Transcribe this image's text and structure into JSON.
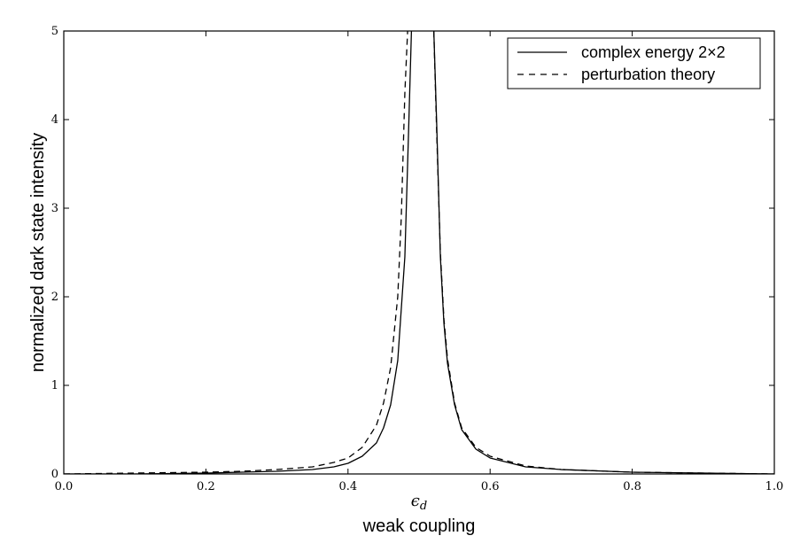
{
  "chart_data": {
    "type": "line",
    "title": "",
    "xlabel_symbol": "ϵ",
    "xlabel_subscript": "d",
    "xlabel_caption": "weak coupling",
    "ylabel": "normalized dark state intensity",
    "xlim": [
      0.0,
      1.0
    ],
    "ylim": [
      0,
      5
    ],
    "x_ticks": [
      "0.0",
      "0.2",
      "0.4",
      "0.6",
      "0.8",
      "1.0"
    ],
    "y_ticks": [
      "0",
      "1",
      "2",
      "3",
      "4",
      "5"
    ],
    "grid": false,
    "legend_position": "top-right",
    "series": [
      {
        "name": "complex energy 2×2",
        "style": "solid",
        "color": "#000000",
        "x": [
          0.0,
          0.1,
          0.2,
          0.25,
          0.3,
          0.35,
          0.38,
          0.4,
          0.42,
          0.44,
          0.45,
          0.46,
          0.47,
          0.48,
          0.485,
          0.49,
          0.52,
          0.525,
          0.53,
          0.535,
          0.54,
          0.55,
          0.56,
          0.58,
          0.6,
          0.65,
          0.7,
          0.8,
          0.9,
          1.0
        ],
        "y": [
          0.0,
          0.0,
          0.01,
          0.02,
          0.03,
          0.05,
          0.08,
          0.12,
          0.2,
          0.35,
          0.52,
          0.78,
          1.28,
          2.45,
          3.8,
          5.2,
          5.2,
          3.9,
          2.45,
          1.7,
          1.25,
          0.78,
          0.5,
          0.28,
          0.18,
          0.08,
          0.05,
          0.02,
          0.01,
          0.0
        ]
      },
      {
        "name": "perturbation theory",
        "style": "dashed",
        "color": "#000000",
        "x": [
          0.0,
          0.1,
          0.2,
          0.25,
          0.3,
          0.35,
          0.38,
          0.4,
          0.42,
          0.44,
          0.45,
          0.46,
          0.47,
          0.475,
          0.48,
          0.485,
          0.52,
          0.525,
          0.53,
          0.535,
          0.54,
          0.55,
          0.56,
          0.58,
          0.6,
          0.65,
          0.7,
          0.8,
          0.9,
          1.0
        ],
        "y": [
          0.0,
          0.01,
          0.02,
          0.03,
          0.05,
          0.08,
          0.13,
          0.18,
          0.3,
          0.55,
          0.8,
          1.2,
          2.0,
          2.9,
          4.3,
          5.2,
          5.2,
          3.8,
          2.5,
          1.75,
          1.3,
          0.8,
          0.52,
          0.3,
          0.2,
          0.09,
          0.05,
          0.02,
          0.01,
          0.0
        ]
      }
    ]
  }
}
